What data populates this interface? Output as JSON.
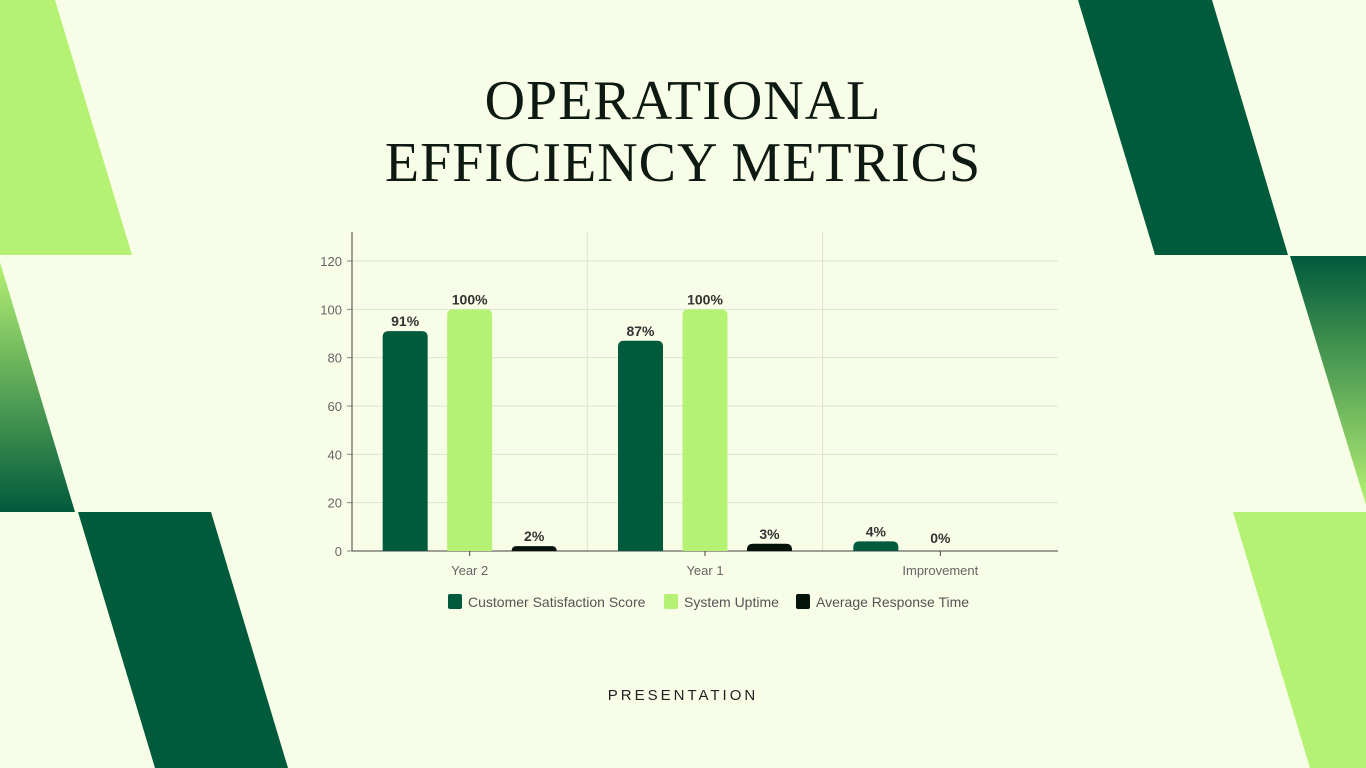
{
  "title_line1": "OPERATIONAL",
  "title_line2": "EFFICIENCY METRICS",
  "footer": "PRESENTATION",
  "colors": {
    "background": "#f8fde8",
    "dark_green": "#005a3c",
    "light_green": "#b5f273",
    "black": "#04140d"
  },
  "chart_data": {
    "type": "bar",
    "categories": [
      "Year 2",
      "Year 1",
      "Improvement"
    ],
    "series": [
      {
        "name": "Customer Satisfaction Score",
        "color": "#005a3c",
        "values": [
          91,
          87,
          4
        ],
        "labels": [
          "91%",
          "87%",
          "4%"
        ]
      },
      {
        "name": "System Uptime",
        "color": "#b5f273",
        "values": [
          100,
          100,
          0
        ],
        "labels": [
          "100%",
          "100%",
          "0%"
        ]
      },
      {
        "name": "Average Response Time",
        "color": "#04140d",
        "values": [
          2,
          3,
          null
        ],
        "labels": [
          "2%",
          "3%",
          null
        ]
      }
    ],
    "ylim": [
      0,
      120
    ],
    "yticks": [
      "0",
      "20",
      "40",
      "60",
      "80",
      "100",
      "120"
    ],
    "grid": true,
    "legend": "bottom"
  }
}
